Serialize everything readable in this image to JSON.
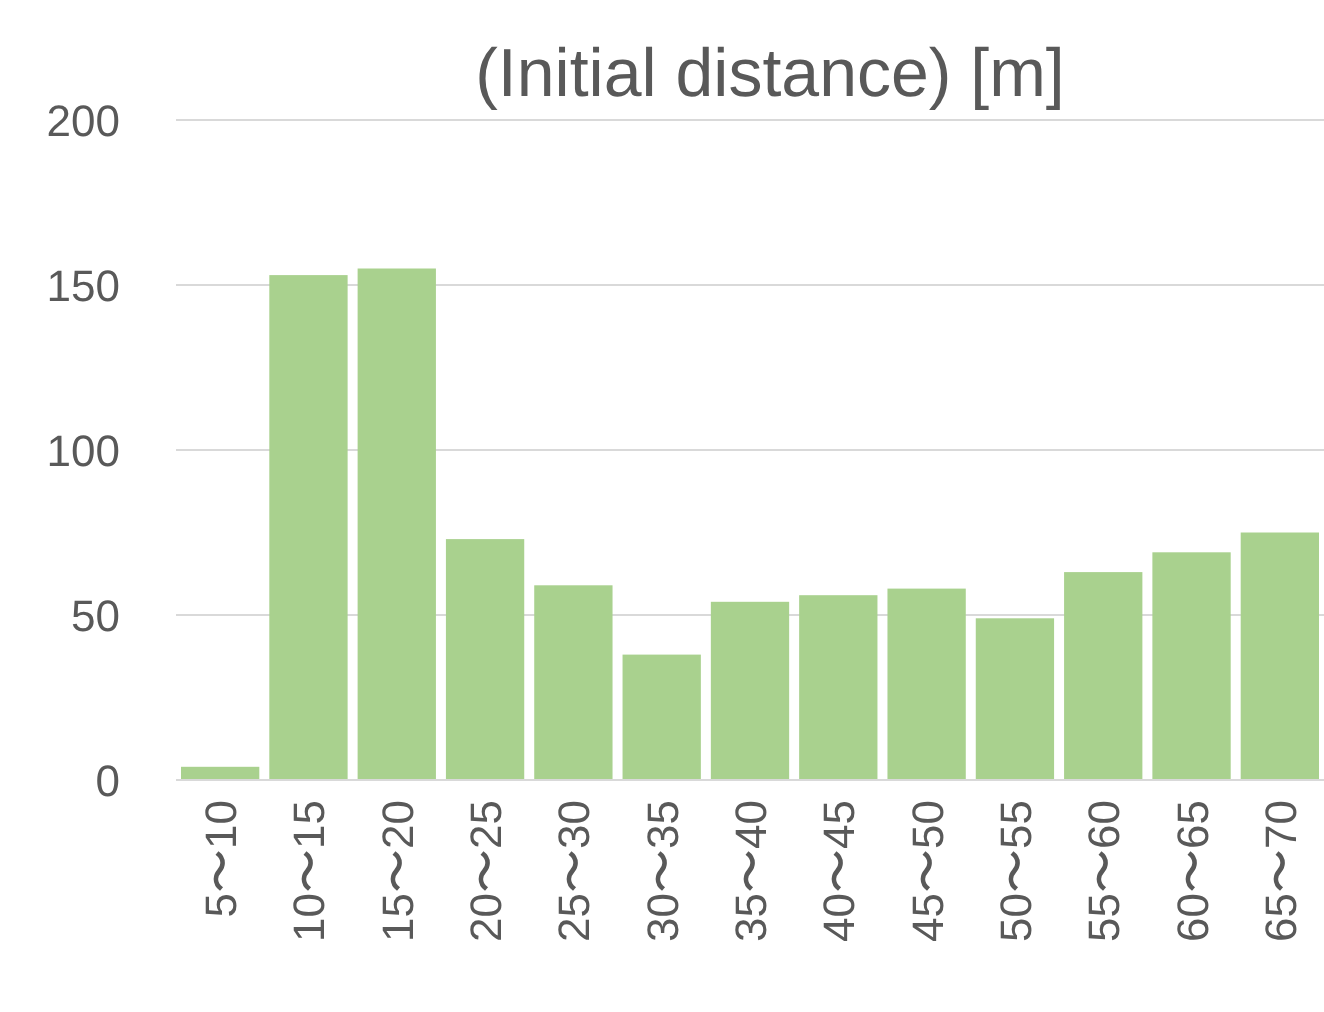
{
  "chart_data": {
    "type": "bar",
    "title": "(Initial distance) [m]",
    "categories": [
      "5〜10",
      "10〜15",
      "15〜20",
      "20〜25",
      "25〜30",
      "30〜35",
      "35〜40",
      "40〜45",
      "45〜50",
      "50〜55",
      "55〜60",
      "60〜65",
      "65〜70"
    ],
    "values": [
      4,
      153,
      155,
      73,
      59,
      38,
      54,
      56,
      58,
      49,
      63,
      69,
      75
    ],
    "color": "#a9d18e",
    "ylim": [
      0,
      200
    ],
    "yticks": [
      0,
      50,
      100,
      150,
      200
    ],
    "grid": "y"
  }
}
